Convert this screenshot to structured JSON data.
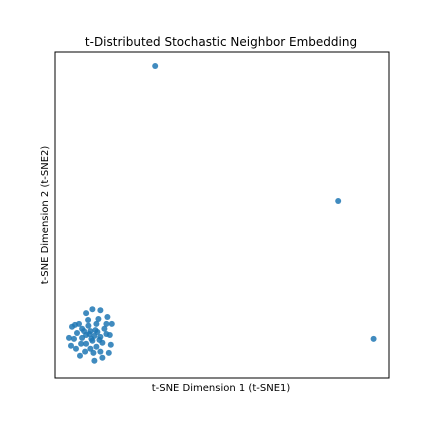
{
  "chart_data": {
    "type": "scatter",
    "title": "t-Distributed Stochastic Neighbor Embedding",
    "xlabel": "t-SNE Dimension 1 (t-SNE1)",
    "ylabel": "t-SNE Dimension 2 (t-SNE2)",
    "xlim": [
      0,
      100
    ],
    "ylim": [
      0,
      100
    ],
    "grid": false,
    "ticks_visible": false,
    "marker_color": "#1f77b4",
    "series": [
      {
        "points": [
          [
            30,
            95.7
          ],
          [
            84.8,
            54.3
          ],
          [
            95.4,
            12.0
          ],
          [
            9.3,
            13.2
          ],
          [
            10.6,
            14.4
          ],
          [
            11.8,
            12.9
          ],
          [
            12.7,
            14.1
          ],
          [
            13.6,
            12.6
          ],
          [
            11.2,
            11.4
          ],
          [
            10.0,
            16.0
          ],
          [
            12.4,
            16.6
          ],
          [
            9.3,
            10.5
          ],
          [
            14.2,
            10.8
          ],
          [
            12.4,
            9.6
          ],
          [
            10.6,
            9.0
          ],
          [
            8.1,
            12.3
          ],
          [
            8.1,
            15.1
          ],
          [
            9.9,
            17.8
          ],
          [
            13.0,
            18.1
          ],
          [
            15.4,
            13.5
          ],
          [
            15.4,
            16.6
          ],
          [
            13.6,
            8.1
          ],
          [
            11.5,
            7.7
          ],
          [
            9.0,
            8.1
          ],
          [
            7.8,
            10.5
          ],
          [
            6.6,
            13.8
          ],
          [
            7.2,
            16.6
          ],
          [
            5.7,
            12.0
          ],
          [
            6.0,
            16.3
          ],
          [
            9.3,
            19.9
          ],
          [
            11.2,
            21.1
          ],
          [
            13.6,
            20.8
          ],
          [
            15.7,
            18.7
          ],
          [
            17.0,
            16.6
          ],
          [
            16.4,
            13.2
          ],
          [
            16.7,
            10.2
          ],
          [
            16.1,
            7.7
          ],
          [
            14.2,
            6.2
          ],
          [
            11.8,
            5.3
          ],
          [
            7.5,
            6.8
          ],
          [
            6.3,
            9.0
          ],
          [
            4.2,
            12.3
          ],
          [
            5.1,
            15.7
          ],
          [
            4.8,
            9.9
          ],
          [
            10.3,
            13.5
          ],
          [
            12.1,
            14.7
          ],
          [
            10.9,
            12.0
          ],
          [
            13.3,
            11.7
          ],
          [
            8.7,
            14.4
          ],
          [
            14.8,
            15.1
          ]
        ]
      }
    ]
  }
}
